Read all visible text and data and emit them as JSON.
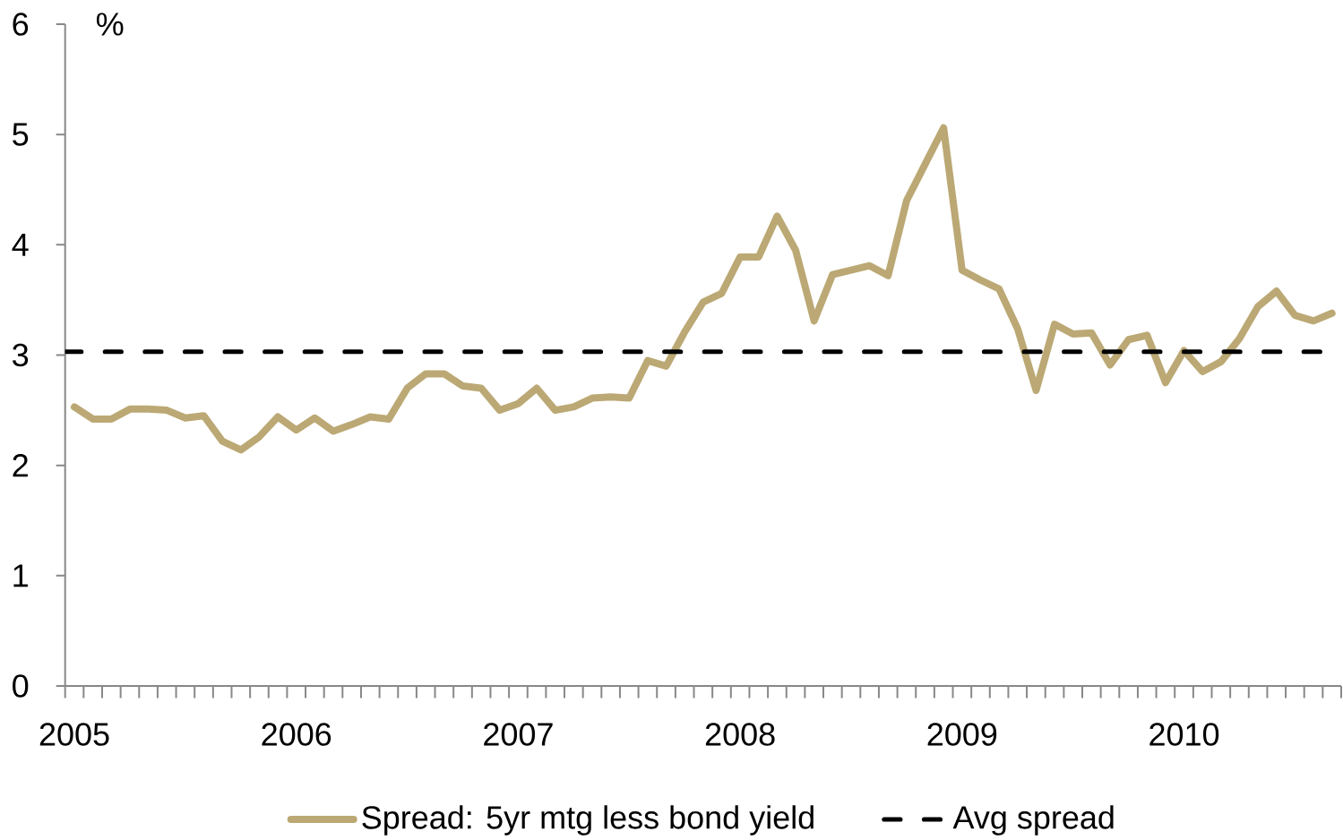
{
  "chart_data": {
    "type": "line",
    "categories": [
      "2005",
      null,
      null,
      null,
      null,
      null,
      null,
      null,
      null,
      null,
      null,
      null,
      "2006",
      null,
      null,
      null,
      null,
      null,
      null,
      null,
      null,
      null,
      null,
      null,
      "2007",
      null,
      null,
      null,
      null,
      null,
      null,
      null,
      null,
      null,
      null,
      null,
      "2008",
      null,
      null,
      null,
      null,
      null,
      null,
      null,
      null,
      null,
      null,
      null,
      "2009",
      null,
      null,
      null,
      null,
      null,
      null,
      null,
      null,
      null,
      null,
      null,
      "2010",
      null,
      null,
      null,
      null,
      null,
      null,
      null,
      null
    ],
    "series": [
      {
        "name": "Spread: 5yr mtg less bond yield",
        "color": "#bba874",
        "values": [
          2.53,
          2.42,
          2.42,
          2.51,
          2.51,
          2.5,
          2.43,
          2.45,
          2.22,
          2.14,
          2.26,
          2.44,
          2.32,
          2.43,
          2.31,
          2.37,
          2.44,
          2.42,
          2.7,
          2.83,
          2.83,
          2.72,
          2.7,
          2.5,
          2.56,
          2.7,
          2.5,
          2.53,
          2.61,
          2.62,
          2.61,
          2.95,
          2.9,
          3.21,
          3.48,
          3.56,
          3.89,
          3.89,
          4.26,
          3.95,
          3.31,
          3.73,
          3.77,
          3.81,
          3.72,
          4.4,
          4.73,
          5.06,
          3.77,
          3.68,
          3.6,
          3.24,
          2.68,
          3.28,
          3.19,
          3.2,
          2.91,
          3.14,
          3.18,
          2.75,
          3.04,
          2.85,
          2.94,
          3.15,
          3.44,
          3.58,
          3.36,
          3.31,
          3.38
        ]
      }
    ],
    "ref_lines": [
      {
        "axis": "y",
        "value": 3.03,
        "label": "Avg spread",
        "color": "#000000",
        "line_style": "dashed"
      }
    ],
    "ylabel": "%",
    "ylim": [
      0,
      6
    ],
    "yticks": [
      0,
      1,
      2,
      3,
      4,
      5,
      6
    ],
    "legend": "bottom",
    "marker": "none",
    "line_style": "solid"
  }
}
